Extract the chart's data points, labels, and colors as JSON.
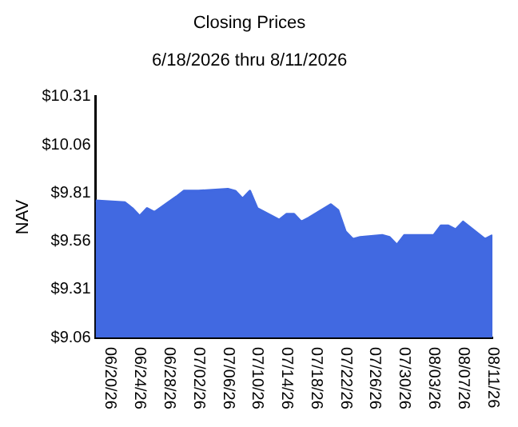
{
  "chart_data": {
    "type": "area",
    "title": "Closing Prices",
    "subtitle": "6/18/2026 thru 8/11/2026",
    "ylabel": "NAV",
    "x": [
      "2026-06-18",
      "2026-06-22",
      "2026-06-23",
      "2026-06-24",
      "2026-06-25",
      "2026-06-26",
      "2026-06-29",
      "2026-06-30",
      "2026-07-01",
      "2026-07-02",
      "2026-07-06",
      "2026-07-07",
      "2026-07-08",
      "2026-07-09",
      "2026-07-10",
      "2026-07-13",
      "2026-07-14",
      "2026-07-15",
      "2026-07-16",
      "2026-07-17",
      "2026-07-20",
      "2026-07-21",
      "2026-07-22",
      "2026-07-23",
      "2026-07-24",
      "2026-07-27",
      "2026-07-28",
      "2026-07-29",
      "2026-07-30",
      "2026-07-31",
      "2026-08-03",
      "2026-08-04",
      "2026-08-05",
      "2026-08-06",
      "2026-08-07",
      "2026-08-10",
      "2026-08-11"
    ],
    "series": [
      {
        "color": "#4169e1",
        "values": [
          9.77,
          9.76,
          9.73,
          9.69,
          9.73,
          9.71,
          9.79,
          9.82,
          9.82,
          9.82,
          9.83,
          9.82,
          9.78,
          9.82,
          9.73,
          9.67,
          9.7,
          9.7,
          9.66,
          9.68,
          9.75,
          9.72,
          9.61,
          9.57,
          9.58,
          9.59,
          9.58,
          9.54,
          9.59,
          9.59,
          9.59,
          9.64,
          9.64,
          9.62,
          9.66,
          9.57,
          9.59
        ]
      }
    ],
    "xlim": [
      "2026-06-18",
      "2026-08-11"
    ],
    "xticks": [
      {
        "value": "2026-06-20",
        "label": "06/20/26"
      },
      {
        "value": "2026-06-24",
        "label": "06/24/26"
      },
      {
        "value": "2026-06-28",
        "label": "06/28/26"
      },
      {
        "value": "2026-07-02",
        "label": "07/02/26"
      },
      {
        "value": "2026-07-06",
        "label": "07/06/26"
      },
      {
        "value": "2026-07-10",
        "label": "07/10/26"
      },
      {
        "value": "2026-07-14",
        "label": "07/14/26"
      },
      {
        "value": "2026-07-18",
        "label": "07/18/26"
      },
      {
        "value": "2026-07-22",
        "label": "07/22/26"
      },
      {
        "value": "2026-07-26",
        "label": "07/26/26"
      },
      {
        "value": "2026-07-30",
        "label": "07/30/26"
      },
      {
        "value": "2026-08-03",
        "label": "08/03/26"
      },
      {
        "value": "2026-08-07",
        "label": "08/07/26"
      },
      {
        "value": "2026-08-11",
        "label": "08/11/26"
      }
    ],
    "ylim": [
      9.06,
      10.31
    ],
    "yticks": [
      {
        "value": 9.06,
        "label": "$9.06"
      },
      {
        "value": 9.31,
        "label": "$9.31"
      },
      {
        "value": 9.56,
        "label": "$9.56"
      },
      {
        "value": 9.81,
        "label": "$9.81"
      },
      {
        "value": 10.06,
        "label": "$10.06"
      },
      {
        "value": 10.31,
        "label": "$10.31"
      }
    ],
    "grid": false,
    "legend": false
  }
}
